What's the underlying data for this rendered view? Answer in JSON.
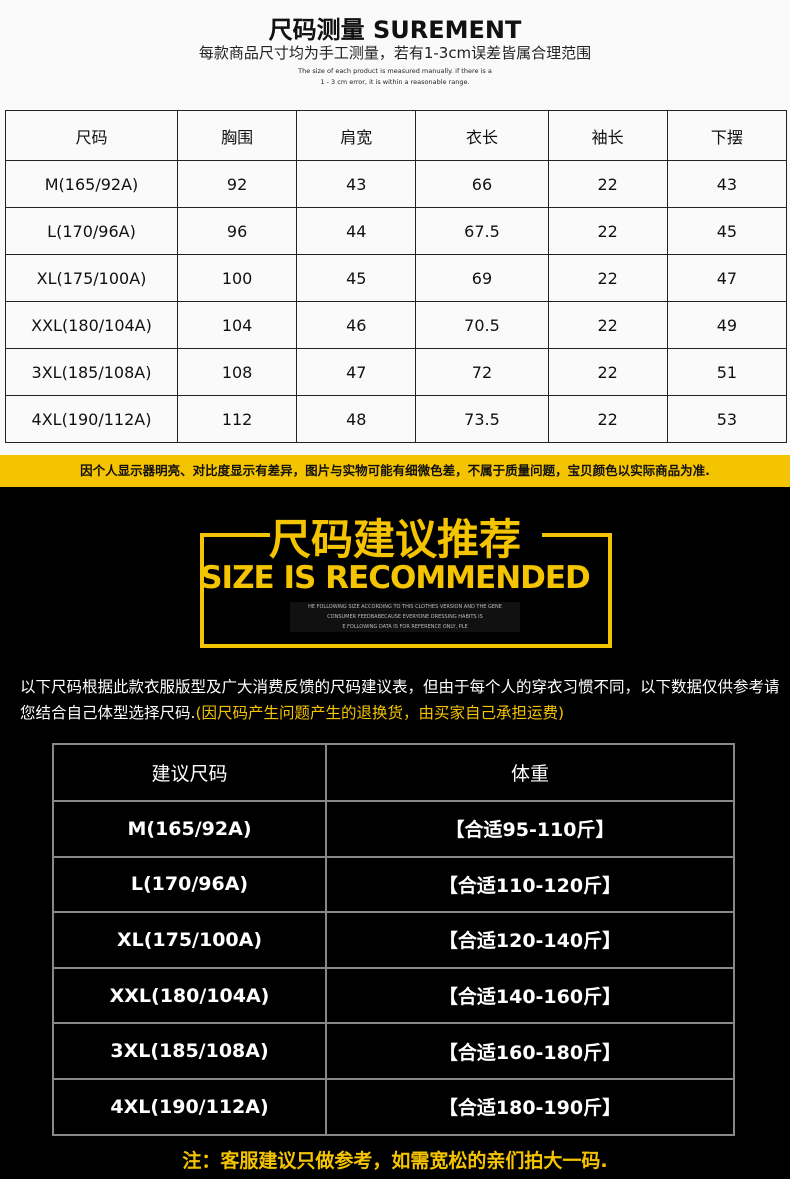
{
  "header": {
    "title": "尺码测量 SUREMENT",
    "subtitle": "每款商品尺寸均为手工测量，若有1-3cm误差皆属合理范围",
    "note_line1": "The size of each product is measured manually. if there is a",
    "note_line2": "1 - 3 cm error, it is within a reasonable range."
  },
  "size_table": {
    "headers": [
      "尺码",
      "胸围",
      "肩宽",
      "衣长",
      "袖长",
      "下摆"
    ],
    "rows": [
      [
        "M(165/92A)",
        "92",
        "43",
        "66",
        "22",
        "43"
      ],
      [
        "L(170/96A)",
        "96",
        "44",
        "67.5",
        "22",
        "45"
      ],
      [
        "XL(175/100A)",
        "100",
        "45",
        "69",
        "22",
        "47"
      ],
      [
        "XXL(180/104A)",
        "104",
        "46",
        "70.5",
        "22",
        "49"
      ],
      [
        "3XL(185/108A)",
        "108",
        "47",
        "72",
        "22",
        "51"
      ],
      [
        "4XL(190/112A)",
        "112",
        "48",
        "73.5",
        "22",
        "53"
      ]
    ]
  },
  "disclaimer": "因个人显示器明亮、对比度显示有差异，图片与实物可能有细微色差，不属于质量问题，宝贝颜色以实际商品为准.",
  "banner": {
    "title_cn": "尺码建议推荐",
    "title_en": "SIZE IS RECOMMENDED",
    "small1": "HE FOLLOWING SIZE ACCORDING TO THIS CLOTHES VERSION AND THE GENE",
    "small2": "CONSUMER FEEDBABECAUSE EVERYONE DRESSING HABITS IS",
    "small3": "E FOLLOWING DATA IS FOR REFERENCE ONLY, PLE"
  },
  "intro": {
    "text": "以下尺码根据此款衣服版型及广大消费反馈的尺码建议表，但由于每个人的穿衣习惯不同，以下数据仅供参考请您结合自己体型选择尺码.",
    "highlight": "(因尺码产生问题产生的退换货，由买家自己承担运费)"
  },
  "rec_table": {
    "headers": [
      "建议尺码",
      "体重"
    ],
    "rows": [
      [
        "M(165/92A)",
        "【合适95-110斤】"
      ],
      [
        "L(170/96A)",
        "【合适110-120斤】"
      ],
      [
        "XL(175/100A)",
        "【合适120-140斤】"
      ],
      [
        "XXL(180/104A)",
        "【合适140-160斤】"
      ],
      [
        "3XL(185/108A)",
        "【合适160-180斤】"
      ],
      [
        "4XL(190/112A)",
        "【合适180-190斤】"
      ]
    ]
  },
  "footer": "注：客服建议只做参考，如需宽松的亲们拍大一码.",
  "colors": {
    "accent": "#f5c400",
    "background": "#000000"
  }
}
